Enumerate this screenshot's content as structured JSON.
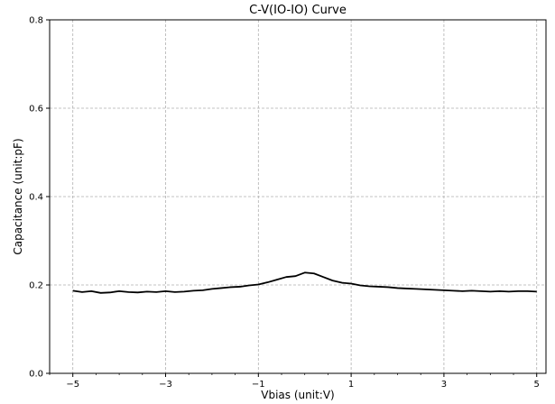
{
  "chart_data": {
    "type": "line",
    "title": "C-V(IO-IO) Curve",
    "xlabel": "Vbias (unit:V)",
    "ylabel": "Capacitance (unit:pF)",
    "xlim": [
      -5.5,
      5.2
    ],
    "ylim": [
      0.0,
      0.8
    ],
    "x_ticks": [
      -5,
      -3,
      -1,
      1,
      3,
      5
    ],
    "y_ticks": [
      0.0,
      0.2,
      0.4,
      0.6,
      0.8
    ],
    "x_tick_labels": [
      "−5",
      "−3",
      "−1",
      "1",
      "3",
      "5"
    ],
    "y_tick_labels": [
      "0.0",
      "0.2",
      "0.4",
      "0.6",
      "0.8"
    ],
    "x_minor_step": 0.5,
    "grid": true,
    "line_color": "#000000",
    "series": [
      {
        "x": [
          -5.0,
          -4.8,
          -4.6,
          -4.4,
          -4.2,
          -4.0,
          -3.8,
          -3.6,
          -3.4,
          -3.2,
          -3.0,
          -2.8,
          -2.6,
          -2.4,
          -2.2,
          -2.0,
          -1.8,
          -1.6,
          -1.4,
          -1.2,
          -1.0,
          -0.8,
          -0.6,
          -0.4,
          -0.2,
          0.0,
          0.2,
          0.4,
          0.6,
          0.8,
          1.0,
          1.2,
          1.4,
          1.6,
          1.8,
          2.0,
          2.2,
          2.4,
          2.6,
          2.8,
          3.0,
          3.2,
          3.4,
          3.6,
          3.8,
          4.0,
          4.2,
          4.4,
          4.6,
          4.8,
          5.0
        ],
        "values": [
          0.187,
          0.184,
          0.186,
          0.182,
          0.183,
          0.186,
          0.184,
          0.183,
          0.185,
          0.184,
          0.186,
          0.184,
          0.185,
          0.187,
          0.188,
          0.191,
          0.193,
          0.195,
          0.196,
          0.199,
          0.201,
          0.206,
          0.212,
          0.218,
          0.22,
          0.228,
          0.226,
          0.218,
          0.21,
          0.205,
          0.203,
          0.199,
          0.197,
          0.196,
          0.195,
          0.193,
          0.192,
          0.191,
          0.19,
          0.189,
          0.188,
          0.187,
          0.186,
          0.187,
          0.186,
          0.185,
          0.186,
          0.185,
          0.186,
          0.186,
          0.185
        ]
      }
    ]
  }
}
